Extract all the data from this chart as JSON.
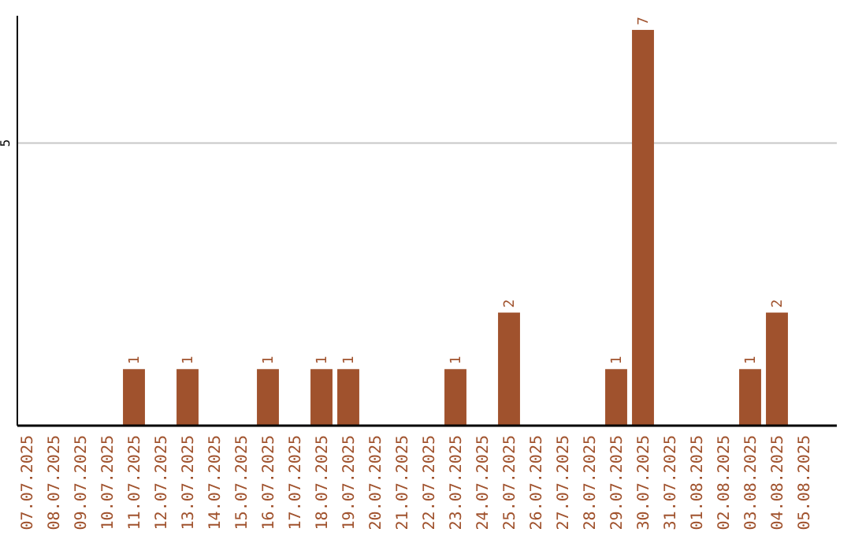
{
  "chart_data": {
    "type": "bar",
    "categories": [
      "07.07.2025",
      "08.07.2025",
      "09.07.2025",
      "10.07.2025",
      "11.07.2025",
      "12.07.2025",
      "13.07.2025",
      "14.07.2025",
      "15.07.2025",
      "16.07.2025",
      "17.07.2025",
      "18.07.2025",
      "19.07.2025",
      "20.07.2025",
      "21.07.2025",
      "22.07.2025",
      "23.07.2025",
      "24.07.2025",
      "25.07.2025",
      "26.07.2025",
      "27.07.2025",
      "28.07.2025",
      "29.07.2025",
      "30.07.2025",
      "31.07.2025",
      "01.08.2025",
      "02.08.2025",
      "03.08.2025",
      "04.08.2025",
      "05.08.2025"
    ],
    "values": [
      0,
      0,
      0,
      0,
      1,
      0,
      1,
      0,
      0,
      1,
      0,
      1,
      1,
      0,
      0,
      0,
      1,
      0,
      2,
      0,
      0,
      0,
      1,
      7,
      0,
      0,
      0,
      1,
      2,
      0
    ],
    "value_labels": [
      null,
      null,
      null,
      null,
      "1",
      null,
      "1",
      null,
      null,
      "1",
      null,
      "1",
      "1",
      null,
      null,
      null,
      "1",
      null,
      "2",
      null,
      null,
      null,
      "1",
      "7",
      null,
      null,
      null,
      "1",
      "2",
      null
    ],
    "color": "#a0522d",
    "ylim": [
      0,
      7.25
    ],
    "yticks": [
      5
    ],
    "grid": "y"
  }
}
